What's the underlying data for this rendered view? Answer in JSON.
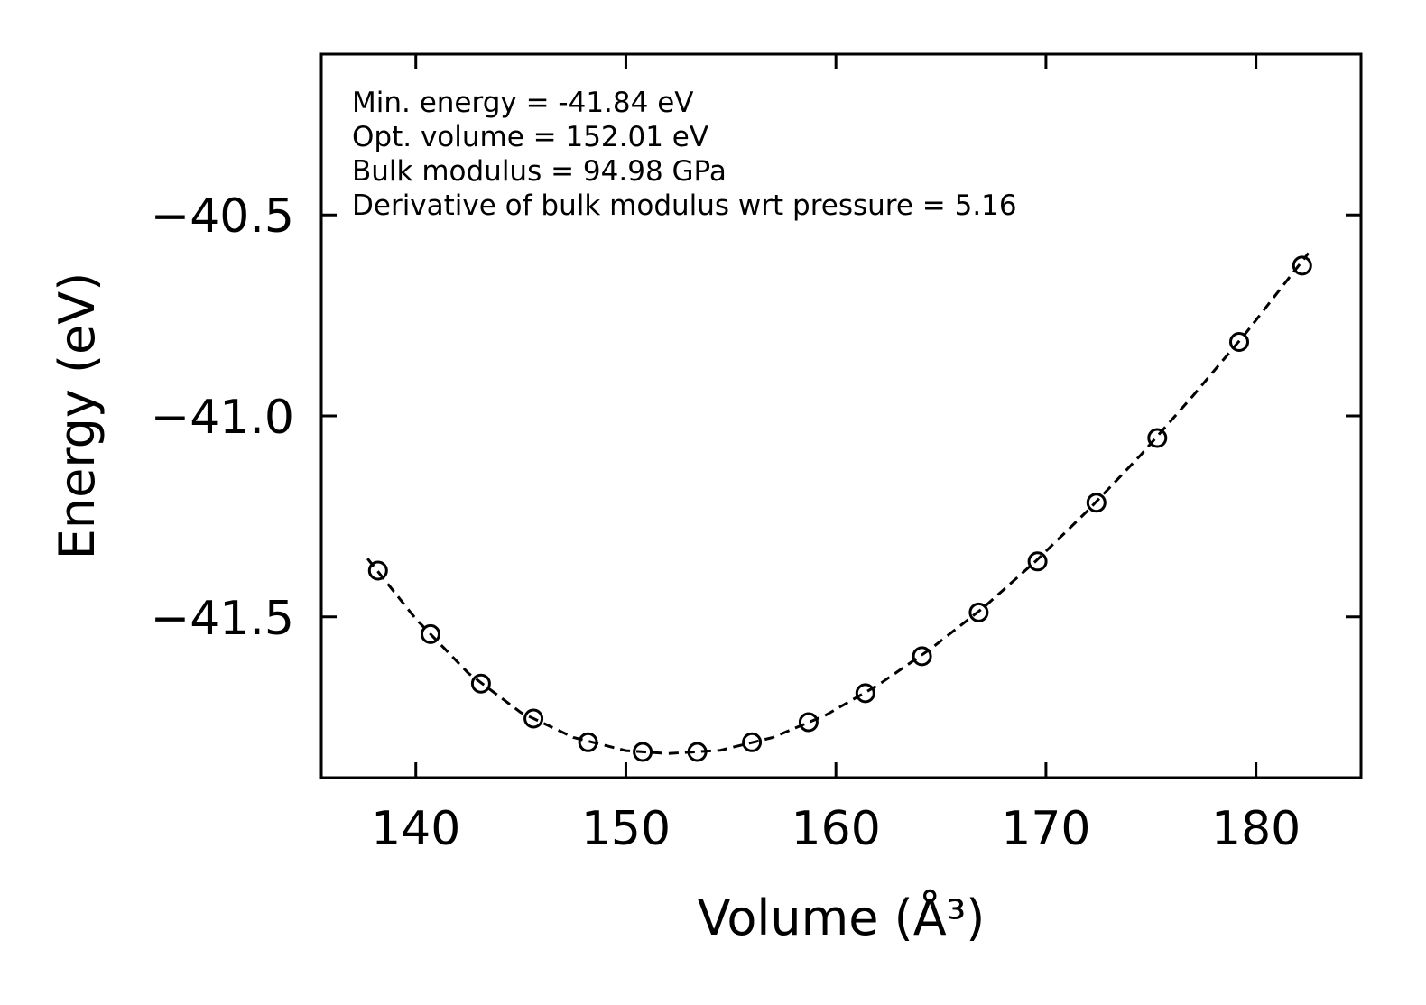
{
  "chart_data": {
    "type": "scatter",
    "title": "",
    "xlabel": "Volume (Å³)",
    "ylabel": "Energy (eV)",
    "xlim": [
      135.5,
      185
    ],
    "ylim": [
      -41.9,
      -40.1
    ],
    "xticks": [
      140,
      150,
      160,
      170,
      180
    ],
    "yticks": [
      -41.5,
      -41.0,
      -40.5
    ],
    "xtick_labels": [
      "140",
      "150",
      "160",
      "170",
      "180"
    ],
    "ytick_labels": [
      "−41.5",
      "−41.0",
      "−40.5"
    ],
    "grid": false,
    "annotations": [
      "Min. energy = -41.84 eV",
      "Opt. volume = 152.01 eV",
      "Bulk modulus = 94.98 GPa",
      "Derivative of bulk modulus wrt pressure = 5.16"
    ],
    "series": [
      {
        "style": "open-circle markers",
        "x": [
          138.2,
          140.7,
          143.1,
          145.6,
          148.2,
          150.8,
          153.4,
          156.0,
          158.7,
          161.4,
          164.1,
          166.8,
          169.6,
          172.4,
          175.3,
          179.2,
          182.2
        ],
        "y": [
          -41.385,
          -41.543,
          -41.666,
          -41.753,
          -41.812,
          -41.836,
          -41.836,
          -41.812,
          -41.762,
          -41.69,
          -41.598,
          -41.489,
          -41.362,
          -41.216,
          -41.055,
          -40.816,
          -40.626
        ]
      },
      {
        "style": "dashed black fit line",
        "x": [
          137.7,
          140.0,
          142.5,
          145.0,
          147.5,
          150.0,
          152.0,
          154.5,
          157.0,
          159.5,
          162.0,
          164.5,
          167.0,
          169.5,
          172.0,
          174.5,
          177.0,
          179.5,
          182.5
        ],
        "y": [
          -41.355,
          -41.505,
          -41.64,
          -41.738,
          -41.8,
          -41.833,
          -41.84,
          -41.832,
          -41.8,
          -41.745,
          -41.67,
          -41.58,
          -41.478,
          -41.362,
          -41.235,
          -41.098,
          -40.95,
          -40.795,
          -40.595
        ]
      }
    ],
    "colors": {
      "line": "#000000",
      "marker": "#000000",
      "background": "#ffffff"
    }
  }
}
